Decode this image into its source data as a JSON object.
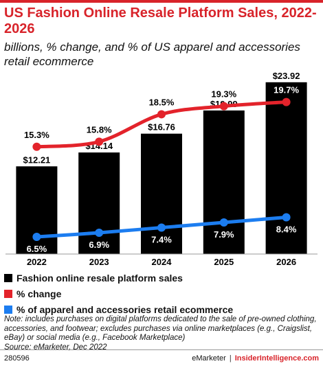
{
  "header": {
    "title": "US Fashion Online Resale Platform Sales, 2022-2026",
    "subtitle": "billions, % change, and % of US apparel and accessories retail ecommerce"
  },
  "chart_data": {
    "type": "bar",
    "categories": [
      "2022",
      "2023",
      "2024",
      "2025",
      "2026"
    ],
    "series": [
      {
        "name": "Fashion online resale platform sales",
        "type": "bar",
        "values": [
          12.21,
          14.14,
          16.76,
          19.99,
          23.92
        ],
        "labels": [
          "$12.21",
          "$14.14",
          "$16.76",
          "$19.99",
          "$23.92"
        ],
        "color": "#000000"
      },
      {
        "name": "% change",
        "type": "line",
        "values": [
          15.3,
          15.8,
          18.5,
          19.3,
          19.7
        ],
        "labels": [
          "15.3%",
          "15.8%",
          "18.5%",
          "19.3%",
          "19.7%"
        ],
        "color": "#e3232b"
      },
      {
        "name": "% of apparel and accessories retail ecommerce",
        "type": "line",
        "values": [
          6.5,
          6.9,
          7.4,
          7.9,
          8.4
        ],
        "labels": [
          "6.5%",
          "6.9%",
          "7.4%",
          "7.9%",
          "8.4%"
        ],
        "color": "#1c7df0"
      }
    ],
    "ylim": [
      0,
      25
    ],
    "grid": false,
    "legend": "bottom"
  },
  "legend": {
    "items": [
      {
        "label": "Fashion online resale platform sales",
        "color": "#000000"
      },
      {
        "label": "% change",
        "color": "#e3232b"
      },
      {
        "label": "% of apparel and accessories retail ecommerce",
        "color": "#1c7df0"
      }
    ]
  },
  "note": {
    "line1": "Note: includes purchases on digital platforms dedicated to the sale of pre-owned clothing, accessories, and footwear; excludes purchases via online marketplaces (e.g., Craigslist, eBay) or social media (e.g., Facebook Marketplace)",
    "line2": "Source: eMarketer, Dec 2022"
  },
  "footer": {
    "id": "280596",
    "brand": "eMarketer",
    "separator": "|",
    "site": "InsiderIntelligence.com"
  }
}
